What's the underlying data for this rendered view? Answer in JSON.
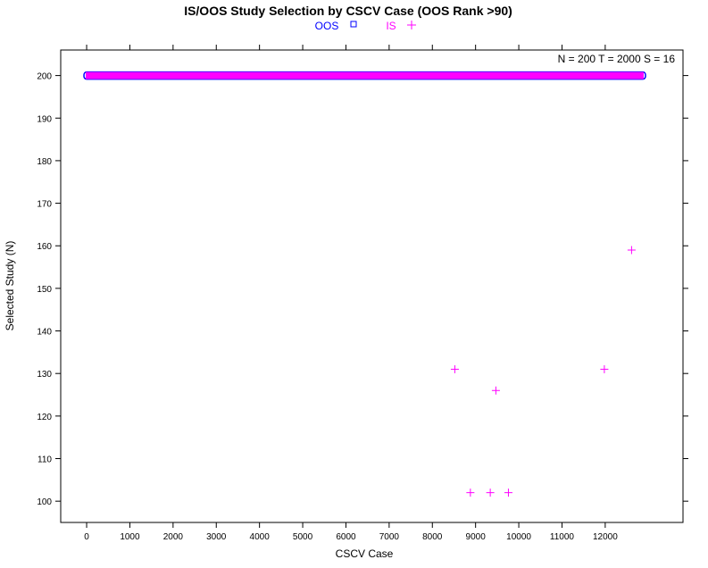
{
  "chart_data": {
    "type": "scatter",
    "title": "IS/OOS Study Selection by CSCV Case (OOS Rank >90)",
    "xlabel": "CSCV Case",
    "ylabel": "Selected Study (N)",
    "annotation": "N = 200  T = 2000  S = 16",
    "xlim": [
      -600,
      13800
    ],
    "ylim": [
      95,
      206
    ],
    "xticks": [
      0,
      1000,
      2000,
      3000,
      4000,
      5000,
      6000,
      7000,
      8000,
      9000,
      10000,
      11000,
      12000
    ],
    "yticks": [
      100,
      110,
      120,
      130,
      140,
      150,
      160,
      170,
      180,
      190,
      200
    ],
    "legend_placement": "top-center",
    "grid": false,
    "series": [
      {
        "name": "OOS",
        "marker": "square",
        "color": "#0000ff",
        "band": {
          "x_from": 0,
          "x_to": 12870,
          "y": 200
        },
        "points": []
      },
      {
        "name": "IS",
        "marker": "plus",
        "color": "#ff00ff",
        "band": {
          "x_from": 0,
          "x_to": 12870,
          "y": 200
        },
        "points": [
          {
            "x": 8520,
            "y": 131
          },
          {
            "x": 8880,
            "y": 102
          },
          {
            "x": 9340,
            "y": 102
          },
          {
            "x": 9470,
            "y": 126
          },
          {
            "x": 9760,
            "y": 102
          },
          {
            "x": 11980,
            "y": 131
          },
          {
            "x": 12610,
            "y": 159
          }
        ]
      }
    ]
  }
}
